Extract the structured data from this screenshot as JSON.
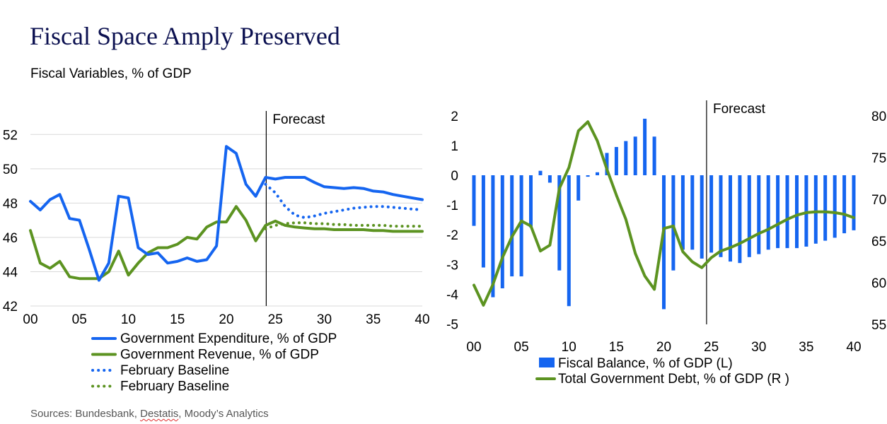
{
  "header": {
    "title": "Fiscal Space Amply Preserved",
    "subtitle": "Fiscal Variables, % of GDP"
  },
  "footer": {
    "source_prefix": "Sources: Bundesbank, ",
    "source_underlined": "Destatis",
    "source_suffix": ", Moody’s Analytics"
  },
  "colors": {
    "blue": "#1565f0",
    "green": "#5c9321",
    "grid": "#d9d9d9"
  },
  "chart_data": [
    {
      "type": "line",
      "forecast_label": "Forecast",
      "forecast_year": 2024,
      "x_tick_labels": [
        "00",
        "05",
        "10",
        "15",
        "20",
        "25",
        "30",
        "35",
        "40"
      ],
      "y_tick_labels": [
        "42",
        "44",
        "46",
        "48",
        "50",
        "52"
      ],
      "xlim": [
        2000,
        2040
      ],
      "ylim": [
        42,
        53
      ],
      "grid": true,
      "legend_position": "bottom",
      "series": [
        {
          "name": "Government Expenditure, % of GDP",
          "color": "#1565f0",
          "style": "solid",
          "x": [
            2000,
            2001,
            2002,
            2003,
            2004,
            2005,
            2006,
            2007,
            2008,
            2009,
            2010,
            2011,
            2012,
            2013,
            2014,
            2015,
            2016,
            2017,
            2018,
            2019,
            2020,
            2021,
            2022,
            2023,
            2024,
            2025,
            2026,
            2027,
            2028,
            2029,
            2030,
            2031,
            2032,
            2033,
            2034,
            2035,
            2036,
            2037,
            2038,
            2039,
            2040
          ],
          "values": [
            48.1,
            47.6,
            48.2,
            48.5,
            47.1,
            47.0,
            45.3,
            43.5,
            44.5,
            48.4,
            48.3,
            45.4,
            45.0,
            45.1,
            44.5,
            44.6,
            44.8,
            44.6,
            44.7,
            45.5,
            51.3,
            50.9,
            49.1,
            48.4,
            49.5,
            49.4,
            49.5,
            49.5,
            49.5,
            49.2,
            48.95,
            48.9,
            48.85,
            48.9,
            48.85,
            48.7,
            48.65,
            48.5,
            48.4,
            48.3,
            48.2
          ]
        },
        {
          "name": "Government Revenue, % of GDP",
          "color": "#5c9321",
          "style": "solid",
          "x": [
            2000,
            2001,
            2002,
            2003,
            2004,
            2005,
            2006,
            2007,
            2008,
            2009,
            2010,
            2011,
            2012,
            2013,
            2014,
            2015,
            2016,
            2017,
            2018,
            2019,
            2020,
            2021,
            2022,
            2023,
            2024,
            2025,
            2026,
            2027,
            2028,
            2029,
            2030,
            2031,
            2032,
            2033,
            2034,
            2035,
            2036,
            2037,
            2038,
            2039,
            2040
          ],
          "values": [
            46.4,
            44.5,
            44.2,
            44.6,
            43.7,
            43.6,
            43.6,
            43.6,
            44.0,
            45.2,
            43.8,
            44.5,
            45.1,
            45.4,
            45.4,
            45.6,
            46.0,
            45.9,
            46.6,
            46.9,
            46.9,
            47.8,
            47.0,
            45.8,
            46.7,
            46.95,
            46.7,
            46.6,
            46.55,
            46.5,
            46.5,
            46.45,
            46.45,
            46.45,
            46.45,
            46.4,
            46.4,
            46.35,
            46.35,
            46.35,
            46.35
          ]
        },
        {
          "name": "February Baseline",
          "color": "#1565f0",
          "style": "dotted",
          "x": [
            2024,
            2025,
            2026,
            2027,
            2028,
            2029,
            2030,
            2031,
            2032,
            2033,
            2034,
            2035,
            2036,
            2037,
            2038,
            2039,
            2040
          ],
          "values": [
            49.1,
            48.6,
            47.8,
            47.3,
            47.15,
            47.25,
            47.4,
            47.5,
            47.6,
            47.7,
            47.75,
            47.8,
            47.8,
            47.75,
            47.7,
            47.65,
            47.6
          ]
        },
        {
          "name": "February Baseline",
          "color": "#5c9321",
          "style": "dotted",
          "x": [
            2024,
            2025,
            2026,
            2027,
            2028,
            2029,
            2030,
            2031,
            2032,
            2033,
            2034,
            2035,
            2036,
            2037,
            2038,
            2039,
            2040
          ],
          "values": [
            46.5,
            46.7,
            46.8,
            46.85,
            46.85,
            46.8,
            46.8,
            46.75,
            46.75,
            46.7,
            46.7,
            46.7,
            46.7,
            46.65,
            46.65,
            46.65,
            46.65
          ]
        }
      ]
    },
    {
      "type": "bar+line",
      "forecast_label": "Forecast",
      "forecast_year": 2024.5,
      "x_tick_labels": [
        "00",
        "05",
        "10",
        "15",
        "20",
        "25",
        "30",
        "35",
        "40"
      ],
      "y_tick_labels_left": [
        "-5",
        "-4",
        "-3",
        "-2",
        "-1",
        "0",
        "1",
        "2"
      ],
      "y_tick_labels_right": [
        "55",
        "60",
        "65",
        "70",
        "75",
        "80"
      ],
      "xlim": [
        2000,
        2040
      ],
      "ylim_left": [
        -5,
        2.2
      ],
      "ylim_right": [
        55,
        80.5
      ],
      "grid": false,
      "legend_position": "bottom",
      "series": [
        {
          "name": "Fiscal Balance, % of GDP (L)",
          "type": "bar",
          "axis": "left",
          "color": "#1565f0",
          "x": [
            2000,
            2001,
            2002,
            2003,
            2004,
            2005,
            2006,
            2007,
            2008,
            2009,
            2010,
            2011,
            2012,
            2013,
            2014,
            2015,
            2016,
            2017,
            2018,
            2019,
            2020,
            2021,
            2022,
            2023,
            2024,
            2025,
            2026,
            2027,
            2028,
            2029,
            2030,
            2031,
            2032,
            2033,
            2034,
            2035,
            2036,
            2037,
            2038,
            2039,
            2040
          ],
          "values": [
            -1.7,
            -3.1,
            -4.1,
            -3.8,
            -3.4,
            -3.4,
            -1.75,
            0.15,
            -0.25,
            -3.2,
            -4.4,
            -0.85,
            -0.05,
            0.1,
            0.75,
            0.95,
            1.15,
            1.3,
            1.9,
            1.3,
            -4.5,
            -3.2,
            -2.5,
            -2.5,
            -2.8,
            -2.6,
            -2.75,
            -2.9,
            -2.95,
            -2.75,
            -2.65,
            -2.5,
            -2.45,
            -2.45,
            -2.45,
            -2.4,
            -2.3,
            -2.2,
            -2.1,
            -1.95,
            -1.85
          ]
        },
        {
          "name": "Total Government Debt, % of GDP (R )",
          "type": "line",
          "axis": "right",
          "color": "#5c9321",
          "x": [
            2000,
            2001,
            2002,
            2003,
            2004,
            2005,
            2006,
            2007,
            2008,
            2009,
            2010,
            2011,
            2012,
            2013,
            2014,
            2015,
            2016,
            2017,
            2018,
            2019,
            2020,
            2021,
            2022,
            2023,
            2024,
            2025,
            2026,
            2027,
            2028,
            2029,
            2030,
            2031,
            2032,
            2033,
            2034,
            2035,
            2036,
            2037,
            2038,
            2039,
            2040
          ],
          "values": [
            59.7,
            57.3,
            59.8,
            63.0,
            65.5,
            67.4,
            66.8,
            63.8,
            64.5,
            71.3,
            73.8,
            78.2,
            79.3,
            77.0,
            73.6,
            70.5,
            67.6,
            63.5,
            60.8,
            59.2,
            66.5,
            66.8,
            63.7,
            62.5,
            61.8,
            63.0,
            63.8,
            64.2,
            64.7,
            65.3,
            65.9,
            66.4,
            67.0,
            67.6,
            68.1,
            68.4,
            68.5,
            68.5,
            68.4,
            68.2,
            67.8
          ]
        }
      ]
    }
  ]
}
